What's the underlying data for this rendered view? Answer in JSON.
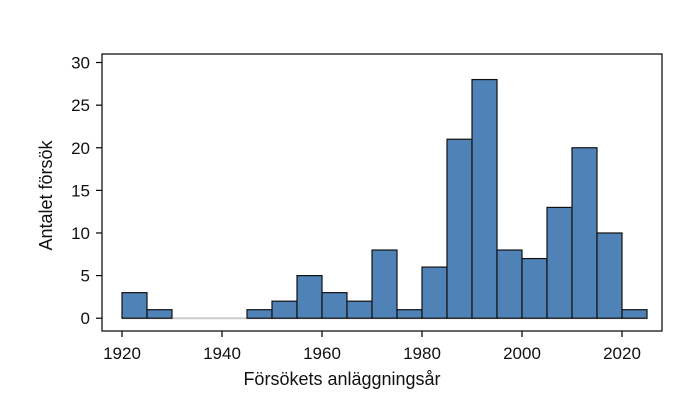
{
  "chart_data": {
    "type": "bar",
    "title": "",
    "xlabel": "Försökets anläggningsår",
    "ylabel": "Antalet försök",
    "bin_width": 5,
    "bins": [
      {
        "x0": 1920,
        "x1": 1925,
        "count": 3
      },
      {
        "x0": 1925,
        "x1": 1930,
        "count": 1
      },
      {
        "x0": 1945,
        "x1": 1950,
        "count": 1
      },
      {
        "x0": 1950,
        "x1": 1955,
        "count": 2
      },
      {
        "x0": 1955,
        "x1": 1960,
        "count": 5
      },
      {
        "x0": 1960,
        "x1": 1965,
        "count": 3
      },
      {
        "x0": 1965,
        "x1": 1970,
        "count": 2
      },
      {
        "x0": 1970,
        "x1": 1975,
        "count": 8
      },
      {
        "x0": 1975,
        "x1": 1980,
        "count": 1
      },
      {
        "x0": 1980,
        "x1": 1985,
        "count": 6
      },
      {
        "x0": 1985,
        "x1": 1990,
        "count": 21
      },
      {
        "x0": 1990,
        "x1": 1995,
        "count": 28
      },
      {
        "x0": 1995,
        "x1": 2000,
        "count": 8
      },
      {
        "x0": 2000,
        "x1": 2005,
        "count": 7
      },
      {
        "x0": 2005,
        "x1": 2010,
        "count": 13
      },
      {
        "x0": 2010,
        "x1": 2015,
        "count": 20
      },
      {
        "x0": 2015,
        "x1": 2020,
        "count": 10
      },
      {
        "x0": 2020,
        "x1": 2025,
        "count": 1
      }
    ],
    "xlim": [
      1916,
      2028
    ],
    "ylim": [
      -1.5,
      31
    ],
    "x_ticks": [
      1920,
      1940,
      1960,
      1980,
      2000,
      2020
    ],
    "y_ticks": [
      0,
      5,
      10,
      15,
      20,
      25,
      30
    ],
    "bar_color": "#4f82b6",
    "baseline_color": "#cccccc",
    "grid": false,
    "legend": "none"
  }
}
